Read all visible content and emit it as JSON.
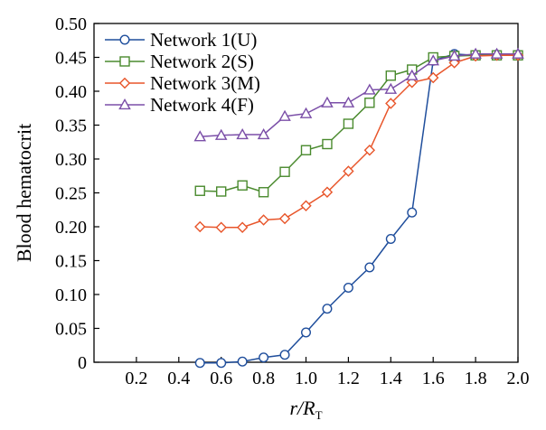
{
  "chart_data": {
    "type": "line",
    "xlabel_main": "r/R",
    "xlabel_sub": "T",
    "ylabel": "Blood hematocrit",
    "xlim": [
      0,
      2.0
    ],
    "ylim": [
      0,
      0.5
    ],
    "x_ticks": [
      0.2,
      0.4,
      0.6,
      0.8,
      1.0,
      1.2,
      1.4,
      1.6,
      1.8,
      2.0
    ],
    "x_tick_labels": [
      "0.2",
      "0.4",
      "0.6",
      "0.8",
      "1.0",
      "1.2",
      "1.4",
      "1.6",
      "1.8",
      "2.0"
    ],
    "y_ticks": [
      0,
      0.05,
      0.1,
      0.15,
      0.2,
      0.25,
      0.3,
      0.35,
      0.4,
      0.45,
      0.5
    ],
    "y_tick_labels": [
      "0",
      "0.05",
      "0.10",
      "0.15",
      "0.20",
      "0.25",
      "0.30",
      "0.35",
      "0.40",
      "0.45",
      "0.50"
    ],
    "grid": false,
    "legend": "top-left",
    "x": [
      0.5,
      0.6,
      0.7,
      0.8,
      0.9,
      1.0,
      1.1,
      1.2,
      1.3,
      1.4,
      1.5,
      1.6,
      1.7,
      1.8,
      1.9,
      2.0
    ],
    "series": [
      {
        "name": "Network 1(U)",
        "marker": "circle",
        "color": "#1f4e9c",
        "values": [
          -0.001,
          -0.001,
          0.001,
          0.007,
          0.011,
          0.044,
          0.079,
          0.11,
          0.14,
          0.182,
          0.221,
          0.445,
          0.455,
          0.453,
          0.454,
          0.454
        ]
      },
      {
        "name": "Network 2(S)",
        "marker": "square",
        "color": "#4a8a2e",
        "values": [
          0.253,
          0.252,
          0.261,
          0.251,
          0.281,
          0.313,
          0.322,
          0.352,
          0.383,
          0.423,
          0.432,
          0.45,
          0.452,
          0.453,
          0.453,
          0.453
        ]
      },
      {
        "name": "Network 3(M)",
        "marker": "diamond",
        "color": "#e8552a",
        "values": [
          0.2,
          0.199,
          0.199,
          0.21,
          0.212,
          0.231,
          0.251,
          0.282,
          0.313,
          0.382,
          0.413,
          0.42,
          0.442,
          0.452,
          0.453,
          0.453
        ]
      },
      {
        "name": "Network 4(F)",
        "marker": "triangle",
        "color": "#7b4fa8",
        "values": [
          0.333,
          0.335,
          0.336,
          0.336,
          0.363,
          0.367,
          0.383,
          0.383,
          0.402,
          0.403,
          0.423,
          0.445,
          0.452,
          0.455,
          0.455,
          0.455
        ]
      }
    ]
  }
}
